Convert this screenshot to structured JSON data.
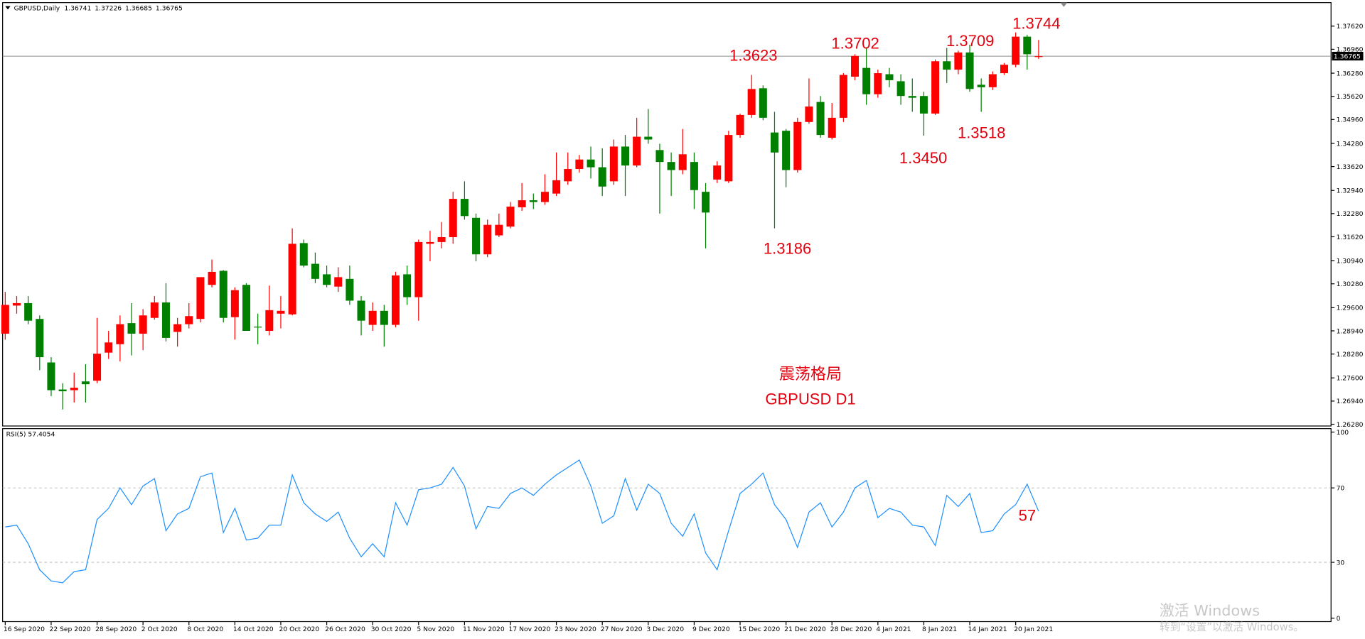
{
  "chart_data": [
    {
      "type": "candlestick",
      "title": "GBPUSD,Daily",
      "categories": [
        "16 Sep 2020",
        null,
        null,
        null,
        "22 Sep 2020",
        null,
        null,
        null,
        "28 Sep 2020",
        null,
        null,
        null,
        "2 Oct 2020",
        null,
        null,
        null,
        "8 Oct 2020",
        null,
        null,
        null,
        "14 Oct 2020",
        null,
        null,
        null,
        "20 Oct 2020",
        null,
        null,
        null,
        "26 Oct 2020",
        null,
        null,
        null,
        "30 Oct 2020",
        null,
        null,
        null,
        "5 Nov 2020",
        null,
        null,
        null,
        "11 Nov 2020",
        null,
        null,
        null,
        "17 Nov 2020",
        null,
        null,
        null,
        "23 Nov 2020",
        null,
        null,
        null,
        "27 Nov 2020",
        null,
        null,
        null,
        "3 Dec 2020",
        null,
        null,
        null,
        "9 Dec 2020",
        null,
        null,
        null,
        "15 Dec 2020",
        null,
        null,
        null,
        "21 Dec 2020",
        null,
        null,
        null,
        "28 Dec 2020",
        null,
        null,
        null,
        "4 Jan 2021",
        null,
        null,
        null,
        "8 Jan 2021",
        null,
        null,
        null,
        "14 Jan 2021",
        null,
        null,
        null,
        "20 Jan 2021",
        null,
        null
      ],
      "open": [
        1.2886,
        1.2966,
        1.2973,
        1.2928,
        1.2804,
        1.2727,
        1.2725,
        1.275,
        1.2752,
        1.2832,
        1.2856,
        1.2916,
        1.2886,
        1.2931,
        1.2975,
        1.2891,
        1.2913,
        1.2928,
        1.3025,
        1.3065,
        1.2933,
        1.3025,
        1.2906,
        1.2894,
        1.2943,
        1.2941,
        1.3144,
        1.3085,
        1.3055,
        1.302,
        1.3042,
        1.298,
        1.2911,
        1.2951,
        1.2911,
        1.3055,
        1.299,
        1.3142,
        1.3147,
        1.3161,
        1.327,
        1.3216,
        1.3112,
        1.3166,
        1.3191,
        1.3246,
        1.3266,
        1.3261,
        1.3285,
        1.332,
        1.3355,
        1.3382,
        1.336,
        1.332,
        1.3419,
        1.3365,
        1.3447,
        1.3409,
        1.3375,
        1.3352,
        1.3375,
        1.329,
        1.3325,
        1.332,
        1.3452,
        1.3509,
        1.3585,
        1.3459,
        1.3464,
        1.3352,
        1.3489,
        1.3546,
        1.3444,
        1.3501,
        1.3618,
        1.3643,
        1.3568,
        1.3625,
        1.3605,
        1.3563,
        1.3563,
        1.3513,
        1.3662,
        1.3638,
        1.3687,
        1.3595,
        1.3588,
        1.3628,
        1.3652,
        1.3732,
        1.36741
      ],
      "high": [
        1.3005,
        1.2993,
        1.2993,
        1.2938,
        1.2819,
        1.2745,
        1.2775,
        1.2799,
        1.2931,
        1.2894,
        1.2938,
        1.2973,
        1.2956,
        1.2993,
        1.303,
        1.2931,
        1.2973,
        1.3047,
        1.3097,
        1.3067,
        1.3018,
        1.303,
        1.2943,
        1.3023,
        1.2993,
        1.3186,
        1.3154,
        1.3117,
        1.308,
        1.3075,
        1.308,
        1.2993,
        1.2975,
        1.2968,
        1.3062,
        1.308,
        1.3154,
        1.3179,
        1.3204,
        1.329,
        1.332,
        1.3228,
        1.3211,
        1.3228,
        1.3261,
        1.3315,
        1.3285,
        1.334,
        1.3402,
        1.3402,
        1.3395,
        1.3419,
        1.3414,
        1.3439,
        1.3452,
        1.3501,
        1.3526,
        1.3427,
        1.3402,
        1.3469,
        1.3402,
        1.3315,
        1.3377,
        1.3464,
        1.3513,
        1.3623,
        1.3593,
        1.3518,
        1.3469,
        1.3501,
        1.3613,
        1.3563,
        1.3543,
        1.3628,
        1.3682,
        1.3702,
        1.3638,
        1.3643,
        1.3625,
        1.3613,
        1.3575,
        1.3667,
        1.37,
        1.3692,
        1.3709,
        1.3613,
        1.3633,
        1.3657,
        1.3744,
        1.3737,
        1.37226
      ],
      "low": [
        1.2869,
        1.2943,
        1.2913,
        1.2782,
        1.2708,
        1.267,
        1.269,
        1.269,
        1.2745,
        1.2814,
        1.2807,
        1.2824,
        1.2839,
        1.2926,
        1.2864,
        1.2849,
        1.2901,
        1.2918,
        1.3018,
        1.2918,
        1.2869,
        1.2894,
        1.2856,
        1.2881,
        1.2901,
        1.2938,
        1.3075,
        1.303,
        1.3018,
        1.3005,
        1.2968,
        1.2881,
        1.2894,
        1.2849,
        1.2904,
        1.2968,
        1.2923,
        1.3092,
        1.3129,
        1.3142,
        1.3211,
        1.3092,
        1.3104,
        1.3161,
        1.3186,
        1.3236,
        1.3241,
        1.3253,
        1.3278,
        1.331,
        1.3345,
        1.3328,
        1.3278,
        1.331,
        1.3278,
        1.336,
        1.3427,
        1.3228,
        1.3278,
        1.334,
        1.3241,
        1.3129,
        1.3315,
        1.3315,
        1.3444,
        1.3501,
        1.3494,
        1.3186,
        1.3303,
        1.3345,
        1.3484,
        1.3444,
        1.3439,
        1.3489,
        1.3608,
        1.3538,
        1.3558,
        1.3588,
        1.3538,
        1.3518,
        1.345,
        1.3509,
        1.36,
        1.3625,
        1.3575,
        1.3518,
        1.358,
        1.3623,
        1.3645,
        1.3638,
        1.36685
      ],
      "close": [
        1.2968,
        1.2973,
        1.2923,
        1.2819,
        1.2725,
        1.2722,
        1.2732,
        1.2742,
        1.2829,
        1.2861,
        1.2913,
        1.2886,
        1.2938,
        1.2975,
        1.2874,
        1.2913,
        1.2936,
        1.3047,
        1.3062,
        1.2931,
        1.301,
        1.2894,
        1.2904,
        1.2953,
        1.2951,
        1.3142,
        1.308,
        1.3042,
        1.3025,
        1.3047,
        1.298,
        1.2923,
        1.2951,
        1.2911,
        1.3052,
        1.299,
        1.3147,
        1.3147,
        1.3161,
        1.327,
        1.3221,
        1.3112,
        1.3196,
        1.3196,
        1.3248,
        1.3266,
        1.3261,
        1.329,
        1.3323,
        1.3355,
        1.3382,
        1.336,
        1.3305,
        1.3419,
        1.3365,
        1.3447,
        1.3439,
        1.3375,
        1.3352,
        1.3397,
        1.3295,
        1.3231,
        1.3365,
        1.3452,
        1.3509,
        1.3583,
        1.3501,
        1.3402,
        1.3352,
        1.3489,
        1.3533,
        1.3452,
        1.3501,
        1.3623,
        1.3677,
        1.3568,
        1.3628,
        1.3608,
        1.3563,
        1.3558,
        1.3513,
        1.3662,
        1.3638,
        1.3687,
        1.3583,
        1.3588,
        1.3625,
        1.3652,
        1.3732,
        1.3682,
        1.36765
      ],
      "up_color": "#ff0000",
      "down_color": "#008000",
      "ylim": [
        1.2623,
        1.3829
      ],
      "yticks": [
        {
          "value": 1.3762,
          "label": "1.37620"
        },
        {
          "value": 1.3696,
          "label": "1.36960"
        },
        {
          "value": 1.3628,
          "label": "1.36280"
        },
        {
          "value": 1.3562,
          "label": "1.35620"
        },
        {
          "value": 1.3496,
          "label": "1.34960"
        },
        {
          "value": 1.3428,
          "label": "1.34280"
        },
        {
          "value": 1.3362,
          "label": "1.33620"
        },
        {
          "value": 1.3294,
          "label": "1.32940"
        },
        {
          "value": 1.3228,
          "label": "1.32280"
        },
        {
          "value": 1.3162,
          "label": "1.31620"
        },
        {
          "value": 1.3094,
          "label": "1.30940"
        },
        {
          "value": 1.3028,
          "label": "1.30280"
        },
        {
          "value": 1.296,
          "label": "1.29600"
        },
        {
          "value": 1.2894,
          "label": "1.28940"
        },
        {
          "value": 1.2828,
          "label": "1.28280"
        },
        {
          "value": 1.276,
          "label": "1.27600"
        },
        {
          "value": 1.2694,
          "label": "1.26940"
        },
        {
          "value": 1.2628,
          "label": "1.26280"
        }
      ],
      "annotations": [
        "1.3623",
        "1.3702",
        "1.3709",
        "1.3744",
        "1.3186",
        "1.3450",
        "1.3518",
        "震荡格局",
        "GBPUSD D1"
      ]
    },
    {
      "type": "line",
      "title": "RSI(5) 57.4054",
      "color": "#1e90ff",
      "values": [
        49,
        50,
        40,
        26,
        20,
        19,
        25,
        26,
        53,
        59,
        70,
        61,
        71,
        75,
        47,
        56,
        59,
        76,
        78,
        46,
        59,
        42,
        43,
        50,
        50,
        77,
        62,
        56,
        52,
        57,
        43,
        33,
        40,
        33,
        62,
        50,
        69,
        70,
        72,
        81,
        71,
        48,
        60,
        59,
        67,
        70,
        66,
        72,
        77,
        81,
        85,
        71,
        51,
        55,
        75,
        58,
        72,
        67,
        51,
        44,
        56,
        35,
        26,
        47,
        67,
        72,
        78,
        61,
        53,
        38,
        57,
        62,
        49,
        57,
        70,
        74,
        54,
        59,
        57,
        50,
        49,
        39,
        66,
        60,
        67,
        46,
        47,
        56,
        61,
        72,
        57.4054
      ],
      "ylim": [
        0,
        100
      ],
      "yticks": [
        0,
        30,
        70,
        100
      ],
      "levels": [
        30,
        70
      ],
      "annotations": [
        "57"
      ]
    }
  ],
  "watermark": [
    "激活 Windows",
    "转到“设置”以激活 Windows。"
  ]
}
